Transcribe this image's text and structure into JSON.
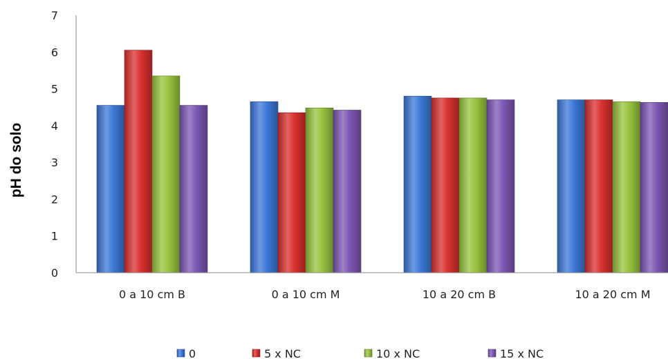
{
  "chart_data": {
    "type": "bar",
    "title": "",
    "xlabel": "",
    "ylabel": "pH do solo",
    "ylim": [
      0,
      7
    ],
    "yticks": [
      0,
      1,
      2,
      3,
      4,
      5,
      6,
      7
    ],
    "grid": false,
    "legend_position": "bottom",
    "categories": [
      "0 a 10 cm B",
      "0 a 10 cm M",
      "10 a 20 cm B",
      "10 a 20 cm M"
    ],
    "series": [
      {
        "name": "0",
        "color": "#3c78d8",
        "values": [
          4.55,
          4.65,
          4.8,
          4.7
        ]
      },
      {
        "name": "5 x NC",
        "color": "#d9302f",
        "values": [
          6.05,
          4.35,
          4.75,
          4.7
        ]
      },
      {
        "name": "10 x NC",
        "color": "#98c33e",
        "values": [
          5.35,
          4.48,
          4.75,
          4.65
        ]
      },
      {
        "name": "15 x NC",
        "color": "#7d57b5",
        "values": [
          4.55,
          4.42,
          4.7,
          4.63
        ]
      }
    ]
  }
}
